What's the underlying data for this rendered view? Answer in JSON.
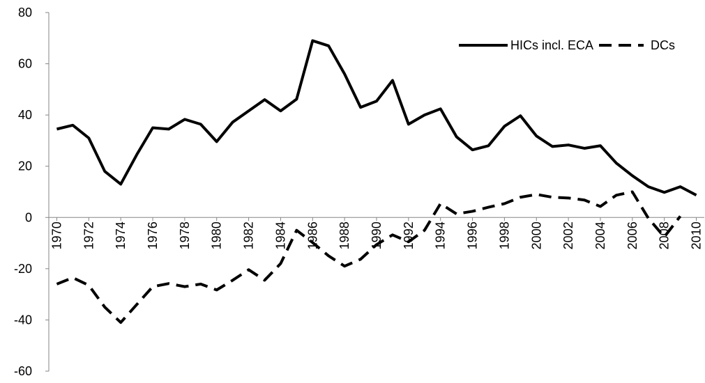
{
  "chart_data": {
    "type": "line",
    "x": [
      1970,
      1971,
      1972,
      1973,
      1974,
      1975,
      1976,
      1977,
      1978,
      1979,
      1980,
      1981,
      1982,
      1983,
      1984,
      1985,
      1986,
      1987,
      1988,
      1989,
      1990,
      1991,
      1992,
      1993,
      1994,
      1995,
      1996,
      1997,
      1998,
      1999,
      2000,
      2001,
      2002,
      2003,
      2004,
      2005,
      2006,
      2007,
      2008,
      2009,
      2010
    ],
    "series": [
      {
        "name": "HICs incl. ECA",
        "color": "#000000",
        "dash": false,
        "values": [
          34.5,
          36,
          31,
          18,
          13,
          24.5,
          35,
          34.5,
          38.3,
          36.4,
          29.6,
          37.2,
          41.6,
          46,
          41.6,
          46.2,
          69,
          67,
          56,
          43,
          45.4,
          53.5,
          36.4,
          40,
          42.4,
          31.5,
          26.4,
          28,
          35.6,
          39.7,
          31.8,
          27.7,
          28.3,
          27,
          28,
          21.2,
          16.3,
          12,
          9.8,
          12,
          8.7
        ]
      },
      {
        "name": "DCs",
        "color": "#000000",
        "dash": true,
        "values": [
          -26,
          -23.5,
          -26.5,
          -35,
          -41,
          -34,
          -27,
          -25.8,
          -27,
          -26,
          -28.3,
          -24.5,
          -20.4,
          -24.5,
          -18,
          -5,
          -9.8,
          -15,
          -19,
          -16.3,
          -10.6,
          -6.8,
          -9.5,
          -5,
          5.4,
          1.4,
          2.4,
          4,
          5.4,
          7.9,
          9,
          7.9,
          7.6,
          6.8,
          4.3,
          8.7,
          10,
          -0.3,
          -7.6,
          0.5,
          null
        ]
      }
    ],
    "xlim": [
      1969.5,
      2010.5
    ],
    "xticks": [
      1970,
      1972,
      1974,
      1976,
      1978,
      1980,
      1982,
      1984,
      1986,
      1988,
      1990,
      1992,
      1994,
      1996,
      1998,
      2000,
      2002,
      2004,
      2006,
      2008,
      2010
    ],
    "ylim": [
      -60,
      80
    ],
    "yticks": [
      -60,
      -40,
      -20,
      0,
      20,
      40,
      60,
      80
    ],
    "legend": "top-right"
  }
}
